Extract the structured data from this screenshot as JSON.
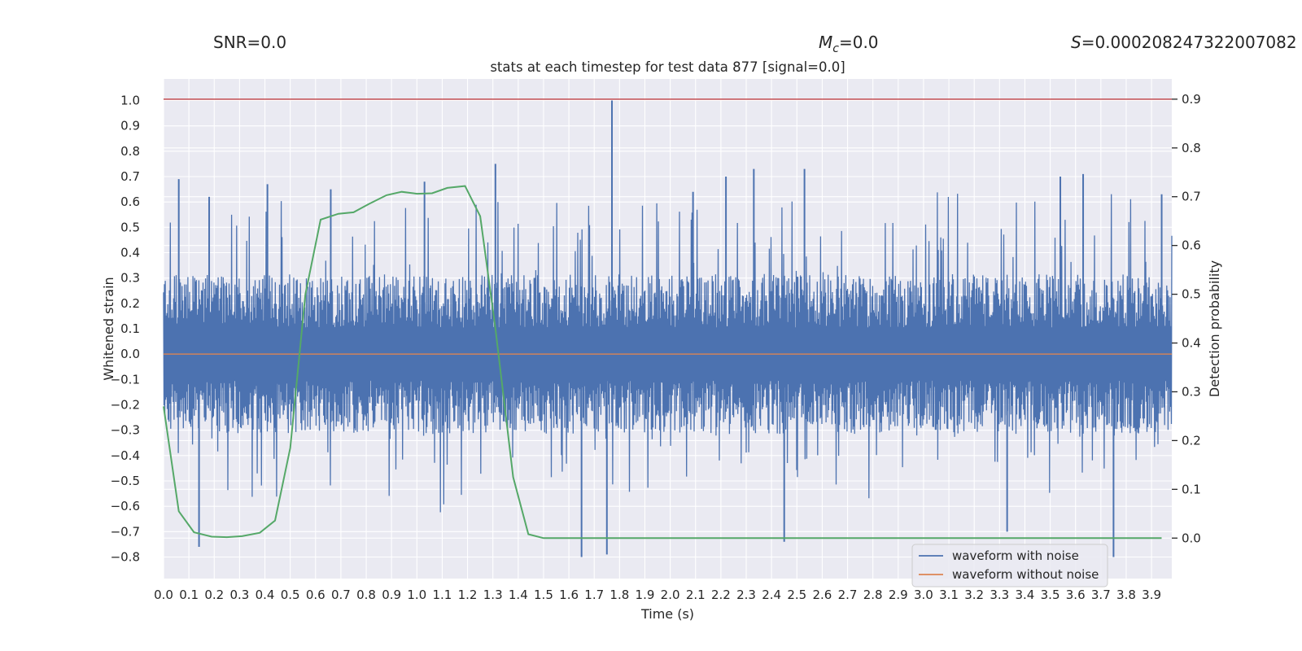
{
  "header": {
    "snr_label": "SNR=0.0",
    "mc_symbol": "M",
    "mc_sub": "c",
    "mc_value": "=0.0",
    "s_symbol": "S",
    "s_value": "=0.000208247322007082"
  },
  "chart_data": {
    "type": "line",
    "title": "stats at each timestep for test data 877 [signal=0.0]",
    "xlabel": "Time (s)",
    "ylabel_left": "Whitened strain",
    "ylabel_right": "Detection probability",
    "xlim": [
      0.0,
      3.98
    ],
    "ylim_left": [
      -0.885,
      1.085
    ],
    "ylim_right": [
      -0.083,
      0.9415
    ],
    "x_ticks": [
      "0.0",
      "0.1",
      "0.2",
      "0.3",
      "0.4",
      "0.5",
      "0.6",
      "0.7",
      "0.8",
      "0.9",
      "1.0",
      "1.1",
      "1.2",
      "1.3",
      "1.4",
      "1.5",
      "1.6",
      "1.7",
      "1.8",
      "1.9",
      "2.0",
      "2.1",
      "2.2",
      "2.3",
      "2.4",
      "2.5",
      "2.6",
      "2.7",
      "2.8",
      "2.9",
      "3.0",
      "3.1",
      "3.2",
      "3.3",
      "3.4",
      "3.5",
      "3.6",
      "3.7",
      "3.8",
      "3.9"
    ],
    "y_ticks_left": [
      "-0.8",
      "-0.7",
      "-0.6",
      "-0.5",
      "-0.4",
      "-0.3",
      "-0.2",
      "-0.1",
      "0.0",
      "0.1",
      "0.2",
      "0.3",
      "0.4",
      "0.5",
      "0.6",
      "0.7",
      "0.8",
      "0.9",
      "1.0"
    ],
    "y_ticks_right": [
      "0.0",
      "0.1",
      "0.2",
      "0.3",
      "0.4",
      "0.5",
      "0.6",
      "0.7",
      "0.8",
      "0.9"
    ],
    "threshold": {
      "axis": "right",
      "value": 0.9,
      "color": "#c44e52"
    },
    "series": [
      {
        "name": "waveform with noise",
        "axis": "left",
        "color": "#4c72b0",
        "style": "dense-noise",
        "band_upper_typical": 0.3,
        "band_lower_typical": -0.3,
        "peaks": [
          {
            "x": 0.06,
            "y": 0.69
          },
          {
            "x": 0.18,
            "y": 0.62
          },
          {
            "x": 0.41,
            "y": 0.67
          },
          {
            "x": 0.66,
            "y": 0.65
          },
          {
            "x": 1.03,
            "y": 0.68
          },
          {
            "x": 1.31,
            "y": 0.75
          },
          {
            "x": 1.77,
            "y": 1.0
          },
          {
            "x": 2.09,
            "y": 0.64
          },
          {
            "x": 2.22,
            "y": 0.7
          },
          {
            "x": 2.33,
            "y": 0.73
          },
          {
            "x": 2.53,
            "y": 0.73
          },
          {
            "x": 3.54,
            "y": 0.7
          },
          {
            "x": 3.63,
            "y": 0.71
          },
          {
            "x": 3.94,
            "y": 0.63
          }
        ],
        "troughs": [
          {
            "x": 0.14,
            "y": -0.76
          },
          {
            "x": 1.65,
            "y": -0.8
          },
          {
            "x": 1.75,
            "y": -0.79
          },
          {
            "x": 2.45,
            "y": -0.74
          },
          {
            "x": 3.33,
            "y": -0.7
          },
          {
            "x": 3.75,
            "y": -0.8
          }
        ]
      },
      {
        "name": "waveform without noise",
        "axis": "left",
        "color": "#dd8452",
        "x": [
          0.0,
          3.98
        ],
        "y": [
          0.0,
          0.0
        ]
      },
      {
        "name": "detection probability",
        "axis": "right",
        "color": "#55a868",
        "x": [
          0.0,
          0.06,
          0.12,
          0.19,
          0.25,
          0.31,
          0.38,
          0.44,
          0.5,
          0.56,
          0.62,
          0.69,
          0.75,
          0.81,
          0.88,
          0.94,
          1.0,
          1.06,
          1.12,
          1.19,
          1.25,
          1.31,
          1.38,
          1.44,
          1.5,
          1.56,
          1.62,
          1.69,
          1.75,
          1.81,
          1.88,
          1.94,
          2.0,
          2.06,
          2.12,
          2.19,
          2.25,
          2.31,
          2.38,
          2.44,
          2.5,
          2.56,
          2.62,
          2.69,
          2.75,
          2.81,
          2.88,
          2.94,
          3.0,
          3.06,
          3.12,
          3.19,
          3.25,
          3.31,
          3.38,
          3.44,
          3.5,
          3.56,
          3.62,
          3.69,
          3.75,
          3.81,
          3.88,
          3.94
        ],
        "y": [
          0.27,
          0.055,
          0.012,
          0.003,
          0.002,
          0.004,
          0.011,
          0.036,
          0.185,
          0.5,
          0.653,
          0.665,
          0.668,
          0.685,
          0.703,
          0.71,
          0.706,
          0.707,
          0.718,
          0.722,
          0.66,
          0.43,
          0.125,
          0.008,
          0.0,
          0.0,
          0.0,
          0.0,
          0.0,
          0.0,
          0.0,
          0.0,
          0.0,
          0.0,
          0.0,
          0.0,
          0.0,
          0.0,
          0.0,
          0.0,
          0.0,
          0.0,
          0.0,
          0.0,
          0.0,
          0.0,
          0.0,
          0.0,
          0.0,
          0.0,
          0.0,
          0.0,
          0.0,
          0.0,
          0.0,
          0.0,
          0.0,
          0.0,
          0.0,
          0.0,
          0.0,
          0.0,
          0.0,
          0.0
        ]
      }
    ],
    "legend": {
      "position": "lower-right",
      "entries": [
        {
          "label": "waveform with noise",
          "color": "#4c72b0"
        },
        {
          "label": "waveform without noise",
          "color": "#dd8452"
        }
      ]
    },
    "colors": {
      "plot_background": "#eaeaf2",
      "grid": "#ffffff"
    }
  }
}
